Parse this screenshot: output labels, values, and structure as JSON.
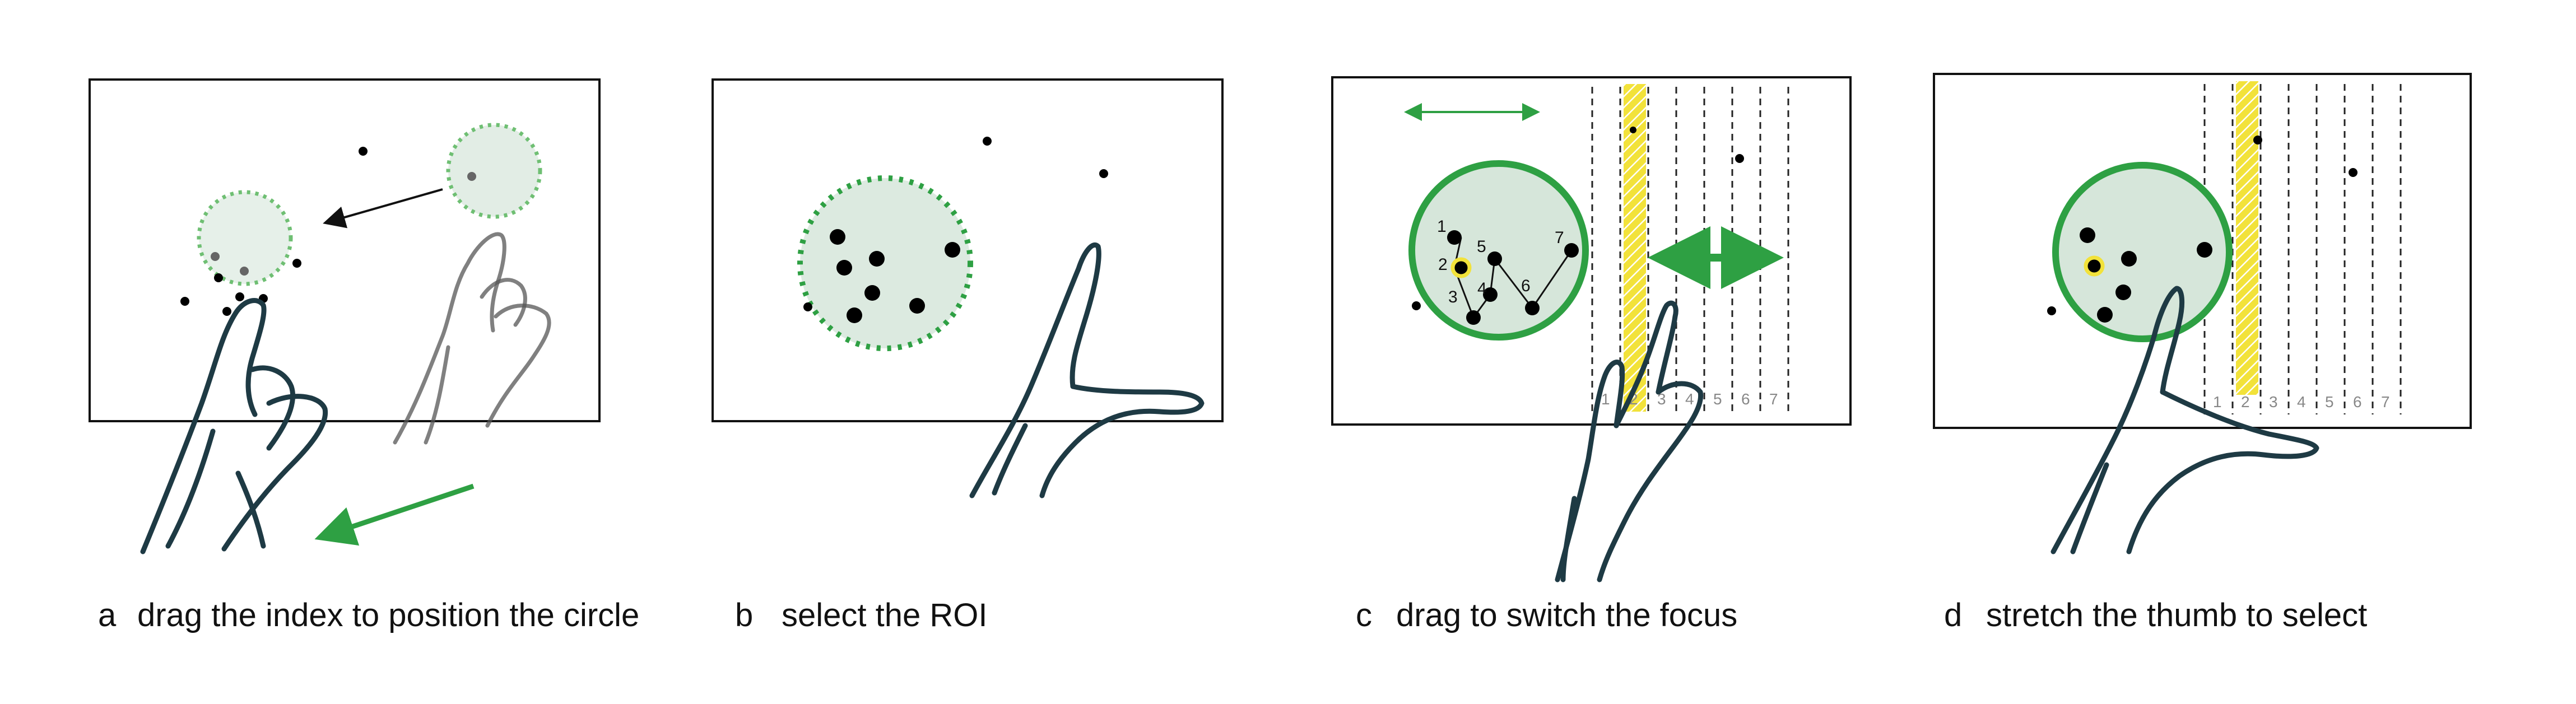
{
  "colors": {
    "accent_green": "#2ea043",
    "circle_fill": "#d6e6da",
    "focus_yellow": "#f2e23a",
    "dot": "#000000"
  },
  "panels": [
    {
      "letter": "a",
      "caption": "drag the index to position the circle"
    },
    {
      "letter": "b",
      "caption": "select the ROI"
    },
    {
      "letter": "c",
      "caption": "drag to switch the focus",
      "point_labels": [
        "1",
        "2",
        "3",
        "4",
        "5",
        "6",
        "7"
      ],
      "column_labels": [
        "1",
        "2",
        "3",
        "4",
        "5",
        "6",
        "7"
      ]
    },
    {
      "letter": "d",
      "caption": "stretch the thumb to select",
      "column_labels": [
        "1",
        "2",
        "3",
        "4",
        "5",
        "6",
        "7"
      ]
    }
  ]
}
